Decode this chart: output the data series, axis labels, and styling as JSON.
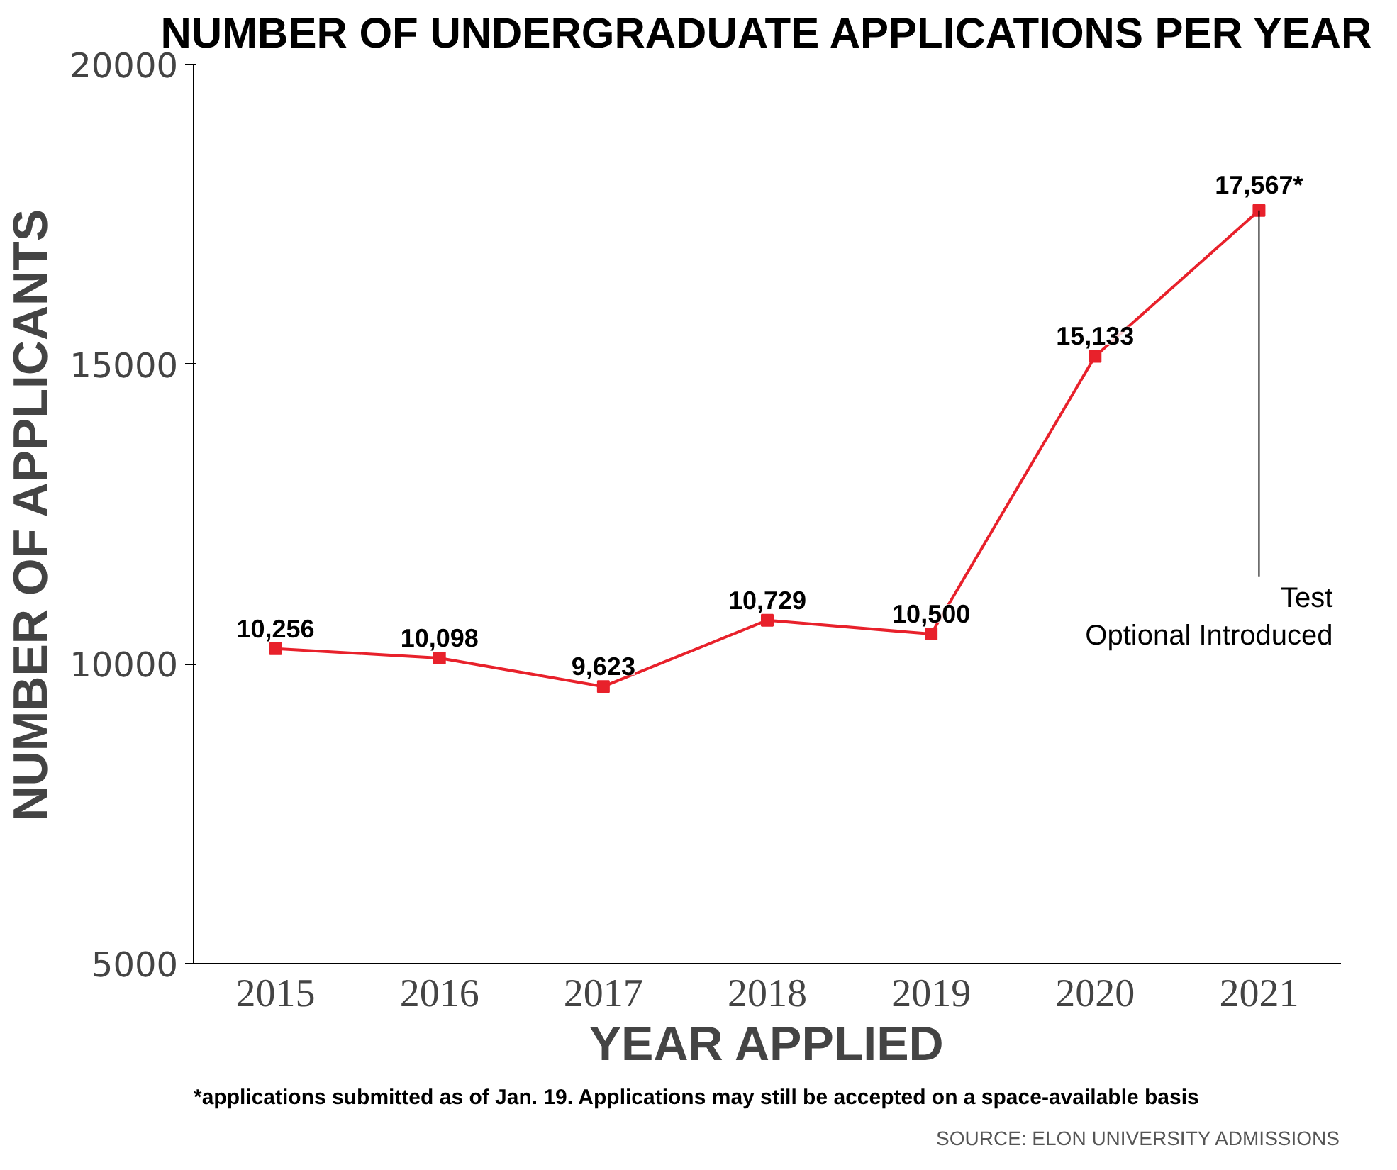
{
  "chart_data": {
    "type": "line",
    "title": "NUMBER OF UNDERGRADUATE APPLICATIONS PER YEAR",
    "xlabel": "YEAR APPLIED",
    "ylabel": "NUMBER OF APPLICANTS",
    "categories": [
      "2015",
      "2016",
      "2017",
      "2018",
      "2019",
      "2020",
      "2021"
    ],
    "series": [
      {
        "color": "#e8212b",
        "values": [
          10256,
          10098,
          9623,
          10729,
          10500,
          15133,
          17567
        ],
        "value_labels": [
          "10,256",
          "10,098",
          "9,623",
          "10,729",
          "10,500",
          "15,133",
          "17,567*"
        ]
      }
    ],
    "ylim": [
      5000,
      20000
    ],
    "yticks": [
      5000,
      10000,
      15000,
      20000
    ],
    "grid": false,
    "marker": "square",
    "line_style": "solid",
    "annotations": [
      {
        "text": "Test\nOptional Introduced",
        "x": "2021",
        "y": 17567
      },
      "*applications submitted as of Jan. 19. Applications may still be accepted on a space-available basis",
      "SOURCE: ELON UNIVERSITY ADMISSIONS"
    ]
  }
}
